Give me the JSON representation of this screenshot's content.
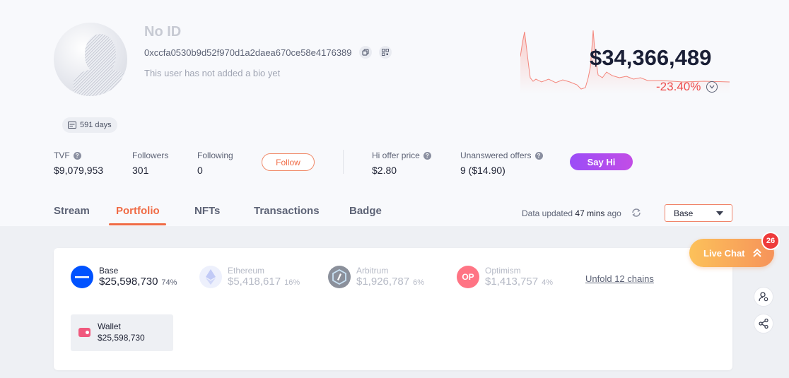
{
  "profile": {
    "name": "No ID",
    "address": "0xccfa0530b9d52f970d1a2daea670ce58e4176389",
    "bio": "This user has not added a bio yet",
    "days": "591 days"
  },
  "portfolio_summary": {
    "total_value": "$34,366,489",
    "change": "-23.40%",
    "change_color": "#ee4b4b"
  },
  "stats": {
    "tvf_label": "TVF",
    "tvf_value": "$9,079,953",
    "followers_label": "Followers",
    "followers_value": "301",
    "following_label": "Following",
    "following_value": "0",
    "follow_button": "Follow",
    "hi_offer_label": "Hi offer price",
    "hi_offer_value": "$2.80",
    "unanswered_label": "Unanswered offers",
    "unanswered_value": "9 ($14.90)",
    "say_hi_button": "Say Hi"
  },
  "tabs": [
    {
      "label": "Stream",
      "active": false
    },
    {
      "label": "Portfolio",
      "active": true
    },
    {
      "label": "NFTs",
      "active": false
    },
    {
      "label": "Transactions",
      "active": false
    },
    {
      "label": "Badge",
      "active": false
    }
  ],
  "data_updated": {
    "prefix": "Data updated",
    "time": "47 mins",
    "suffix": "ago"
  },
  "chain_select": {
    "selected": "Base"
  },
  "chains": [
    {
      "name": "Base",
      "value": "$25,598,730",
      "percent": "74%",
      "color": "#0052ff",
      "icon": "base-icon"
    },
    {
      "name": "Ethereum",
      "value": "$5,418,617",
      "percent": "16%",
      "color": "#8f9ff0",
      "icon": "ethereum-icon"
    },
    {
      "name": "Arbitrum",
      "value": "$1,926,787",
      "percent": "6%",
      "color": "#2d374b",
      "icon": "arbitrum-icon"
    },
    {
      "name": "Optimism",
      "value": "$1,413,757",
      "percent": "4%",
      "color": "#ff0420",
      "icon": "optimism-icon",
      "icon_text": "OP"
    }
  ],
  "unfold_link": "Unfold 12 chains",
  "wallet": {
    "name": "Wallet",
    "value": "$25,598,730"
  },
  "live_chat": {
    "label": "Live Chat",
    "badge": "26"
  },
  "colors": {
    "accent": "#f06b45",
    "say_hi_gradient": [
      "#9b4df7",
      "#c24de6"
    ]
  }
}
